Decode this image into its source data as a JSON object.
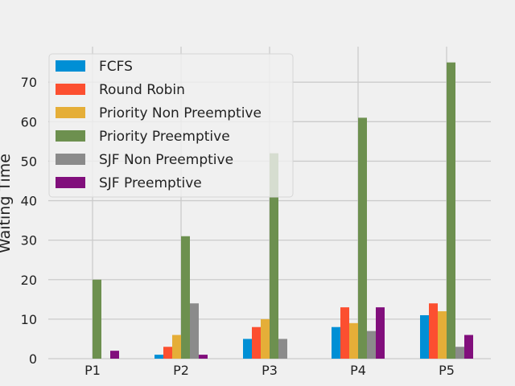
{
  "chart_data": {
    "type": "bar",
    "title": "",
    "xlabel": "",
    "ylabel": "Waiting Time",
    "categories": [
      "P1",
      "P2",
      "P3",
      "P4",
      "P5"
    ],
    "ylim": [
      0,
      79
    ],
    "yticks": [
      0,
      10,
      20,
      30,
      40,
      50,
      60,
      70
    ],
    "grid": true,
    "legend_position": "upper-left",
    "series": [
      {
        "name": "FCFS",
        "color": "#008fd5",
        "values": [
          0,
          1,
          5,
          8,
          11
        ]
      },
      {
        "name": "Round Robin",
        "color": "#fc4f30",
        "values": [
          0,
          3,
          8,
          13,
          14
        ]
      },
      {
        "name": "Priority Non Preemptive",
        "color": "#e5ae38",
        "values": [
          0,
          6,
          10,
          9,
          12
        ]
      },
      {
        "name": "Priority Preemptive",
        "color": "#6d904f",
        "values": [
          20,
          31,
          52,
          61,
          75
        ]
      },
      {
        "name": "SJF Non Preemptive",
        "color": "#8b8b8b",
        "values": [
          0,
          14,
          5,
          7,
          3
        ]
      },
      {
        "name": "SJF Preemptive",
        "color": "#810f7c",
        "values": [
          2,
          1,
          0,
          13,
          6
        ]
      }
    ]
  }
}
